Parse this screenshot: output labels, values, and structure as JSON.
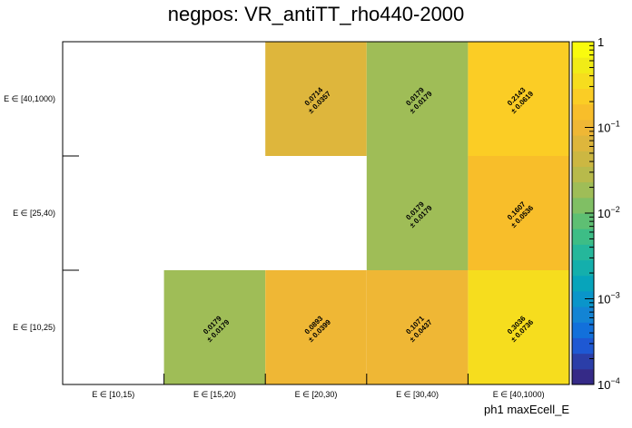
{
  "chart_data": {
    "type": "heatmap",
    "title": "negpos: VR_antiTT_rho440-2000",
    "xlabel": "ph1 maxEcell_E",
    "ylabel": "",
    "x_categories": [
      "E ∈ [10,15)",
      "E ∈ [15,20)",
      "E ∈ [20,30)",
      "E ∈ [30,40)",
      "E ∈ [40,1000)"
    ],
    "y_categories": [
      "E ∈ [10,25)",
      "E ∈ [25,40)",
      "E ∈ [40,1000)"
    ],
    "cells": [
      {
        "x": 1,
        "y": 0,
        "value": 0.0179,
        "value_text": "0.0179",
        "error_text": "± 0.0179"
      },
      {
        "x": 2,
        "y": 0,
        "value": 0.0893,
        "value_text": "0.0893",
        "error_text": "± 0.0399"
      },
      {
        "x": 3,
        "y": 0,
        "value": 0.1071,
        "value_text": "0.1071",
        "error_text": "± 0.0437"
      },
      {
        "x": 4,
        "y": 0,
        "value": 0.3036,
        "value_text": "0.3036",
        "error_text": "± 0.0736"
      },
      {
        "x": 3,
        "y": 1,
        "value": 0.0179,
        "value_text": "0.0179",
        "error_text": "± 0.0179"
      },
      {
        "x": 4,
        "y": 1,
        "value": 0.1607,
        "value_text": "0.1607",
        "error_text": "± 0.0536"
      },
      {
        "x": 2,
        "y": 2,
        "value": 0.0714,
        "value_text": "0.0714",
        "error_text": "± 0.0357"
      },
      {
        "x": 3,
        "y": 2,
        "value": 0.0179,
        "value_text": "0.0179",
        "error_text": "± 0.0179"
      },
      {
        "x": 4,
        "y": 2,
        "value": 0.2143,
        "value_text": "0.2143",
        "error_text": "± 0.0619"
      }
    ],
    "z_scale": "log",
    "z_range": [
      0.0001,
      1
    ],
    "z_ticks": [
      {
        "value": 1,
        "base": "1",
        "exp": ""
      },
      {
        "value": 0.1,
        "base": "10",
        "exp": "−1"
      },
      {
        "value": 0.01,
        "base": "10",
        "exp": "−2"
      },
      {
        "value": 0.001,
        "base": "10",
        "exp": "−3"
      },
      {
        "value": 0.0001,
        "base": "10",
        "exp": "−4"
      }
    ],
    "palette": [
      "#352a87",
      "#2b3ea8",
      "#1e58d3",
      "#1270db",
      "#1384d4",
      "#0a95ca",
      "#07a4bb",
      "#14afac",
      "#25b79b",
      "#3dbd86",
      "#5ebf73",
      "#80bf64",
      "#9fbd57",
      "#b8ba4b",
      "#ccb742",
      "#deb63c",
      "#efb735",
      "#f8be2a",
      "#fbcd25",
      "#f6dd1e",
      "#f1ec17",
      "#f9fb0e"
    ],
    "grid": false
  }
}
